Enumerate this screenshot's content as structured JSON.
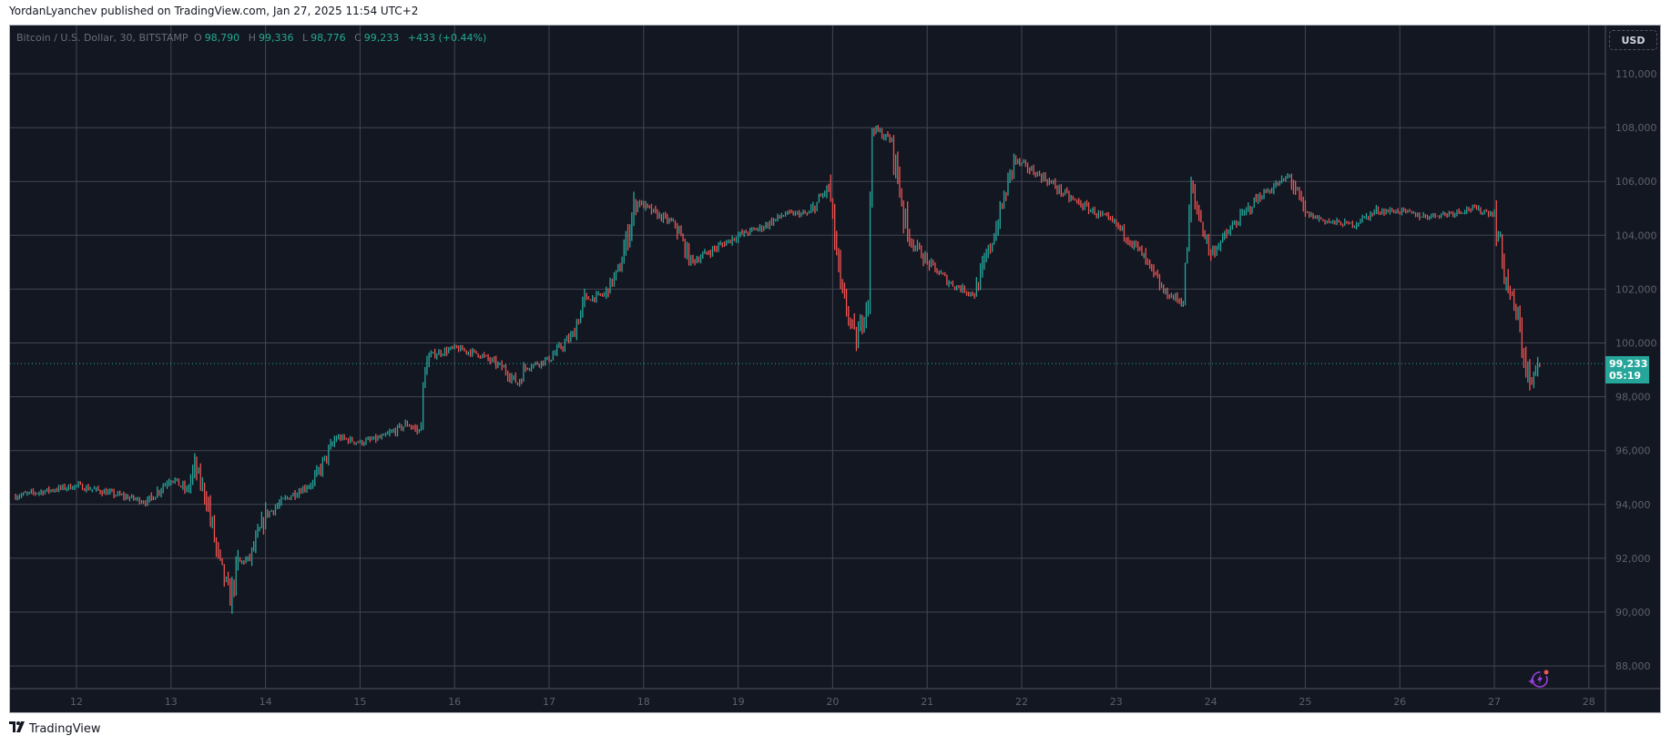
{
  "header": {
    "published": "YordanLyanchev published on TradingView.com, Jan 27, 2025 11:54 UTC+2"
  },
  "legend": {
    "symbol": "Bitcoin / U.S. Dollar, 30, BITSTAMP",
    "o_label": "O",
    "o": "98,790",
    "h_label": "H",
    "h": "99,336",
    "l_label": "L",
    "l": "98,776",
    "c_label": "C",
    "c": "99,233",
    "change": "+433 (+0.44%)"
  },
  "currency_button": "USD",
  "last_price": {
    "price": "99,233",
    "countdown": "05:19"
  },
  "footer": {
    "brand": "TradingView",
    "logo_icon": "tradingview-logo-icon"
  },
  "icons": {
    "bolt": "lightning-sparkle-icon"
  },
  "colors": {
    "background": "#131722",
    "up": "#26a69a",
    "down": "#ef5350",
    "grid": "#434651",
    "last_price": "#26a69a",
    "icon": "#9c3fe0"
  },
  "chart_data": {
    "type": "candlestick",
    "symbol": "BTCUSD",
    "exchange": "BITSTAMP",
    "timeframe": "30",
    "grid": true,
    "ylim": [
      87200,
      111800
    ],
    "y_ticks": [
      "110,000",
      "108,000",
      "106,000",
      "104,000",
      "102,000",
      "100,000",
      "98,000",
      "96,000",
      "94,000",
      "92,000",
      "90,000",
      "88,000"
    ],
    "x_ticks": [
      "12",
      "13",
      "14",
      "15",
      "16",
      "17",
      "18",
      "19",
      "20",
      "21",
      "22",
      "23",
      "24",
      "25",
      "26",
      "27",
      "28"
    ],
    "last_price": 99233,
    "approx_closes": [
      [
        "Jan 11 08:00",
        94300
      ],
      [
        "Jan 11 16:00",
        94500
      ],
      [
        "Jan 12 00:00",
        94700
      ],
      [
        "Jan 12 06:00",
        94500
      ],
      [
        "Jan 12 12:00",
        94300
      ],
      [
        "Jan 12 18:00",
        94100
      ],
      [
        "Jan 13 00:00",
        95000
      ],
      [
        "Jan 13 04:00",
        94500
      ],
      [
        "Jan 13 06:00",
        95400
      ],
      [
        "Jan 13 09:00",
        94200
      ],
      [
        "Jan 13 12:00",
        92000
      ],
      [
        "Jan 13 15:00",
        90500
      ],
      [
        "Jan 13 17:00",
        91800
      ],
      [
        "Jan 13 20:00",
        92000
      ],
      [
        "Jan 14 00:00",
        93600
      ],
      [
        "Jan 14 06:00",
        94300
      ],
      [
        "Jan 14 12:00",
        94800
      ],
      [
        "Jan 14 18:00",
        96500
      ],
      [
        "Jan 15 00:00",
        96300
      ],
      [
        "Jan 15 06:00",
        96500
      ],
      [
        "Jan 15 12:00",
        97000
      ],
      [
        "Jan 15 15:00",
        96700
      ],
      [
        "Jan 15 17:00",
        99500
      ],
      [
        "Jan 16 00:00",
        99800
      ],
      [
        "Jan 16 06:00",
        99600
      ],
      [
        "Jan 16 12:00",
        99100
      ],
      [
        "Jan 16 16:00",
        98500
      ],
      [
        "Jan 16 18:00",
        99100
      ],
      [
        "Jan 17 00:00",
        99400
      ],
      [
        "Jan 17 06:00",
        100300
      ],
      [
        "Jan 17 09:00",
        101600
      ],
      [
        "Jan 17 14:00",
        101800
      ],
      [
        "Jan 17 18:00",
        102800
      ],
      [
        "Jan 17 22:00",
        105300
      ],
      [
        "Jan 18 03:00",
        104800
      ],
      [
        "Jan 18 08:00",
        104400
      ],
      [
        "Jan 18 12:00",
        103000
      ],
      [
        "Jan 18 18:00",
        103500
      ],
      [
        "Jan 19 00:00",
        104000
      ],
      [
        "Jan 19 06:00",
        104300
      ],
      [
        "Jan 19 12:00",
        104800
      ],
      [
        "Jan 19 18:00",
        104800
      ],
      [
        "Jan 19 23:00",
        105800
      ],
      [
        "Jan 20 02:00",
        102000
      ],
      [
        "Jan 20 06:00",
        100000
      ],
      [
        "Jan 20 09:00",
        101800
      ],
      [
        "Jan 20 10:00",
        108000
      ],
      [
        "Jan 20 15:00",
        107500
      ],
      [
        "Jan 20 19:00",
        104000
      ],
      [
        "Jan 21 00:00",
        103000
      ],
      [
        "Jan 21 06:00",
        102200
      ],
      [
        "Jan 21 12:00",
        101800
      ],
      [
        "Jan 21 18:00",
        104500
      ],
      [
        "Jan 21 22:00",
        106800
      ],
      [
        "Jan 22 06:00",
        106100
      ],
      [
        "Jan 22 12:00",
        105400
      ],
      [
        "Jan 22 18:00",
        104900
      ],
      [
        "Jan 23 00:00",
        104400
      ],
      [
        "Jan 23 06:00",
        103400
      ],
      [
        "Jan 23 12:00",
        101900
      ],
      [
        "Jan 23 17:00",
        101500
      ],
      [
        "Jan 23 19:00",
        105700
      ],
      [
        "Jan 24 00:00",
        103300
      ],
      [
        "Jan 24 06:00",
        104400
      ],
      [
        "Jan 24 12:00",
        105400
      ],
      [
        "Jan 24 20:00",
        106200
      ],
      [
        "Jan 25 00:00",
        104800
      ],
      [
        "Jan 25 06:00",
        104500
      ],
      [
        "Jan 25 12:00",
        104400
      ],
      [
        "Jan 25 18:00",
        104900
      ],
      [
        "Jan 26 00:00",
        104900
      ],
      [
        "Jan 26 06:00",
        104700
      ],
      [
        "Jan 26 12:00",
        104800
      ],
      [
        "Jan 26 18:00",
        105000
      ],
      [
        "Jan 27 00:00",
        104800
      ],
      [
        "Jan 27 03:00",
        102300
      ],
      [
        "Jan 27 06:00",
        100800
      ],
      [
        "Jan 27 09:00",
        98400
      ],
      [
        "Jan 27 11:30",
        99233
      ]
    ]
  }
}
